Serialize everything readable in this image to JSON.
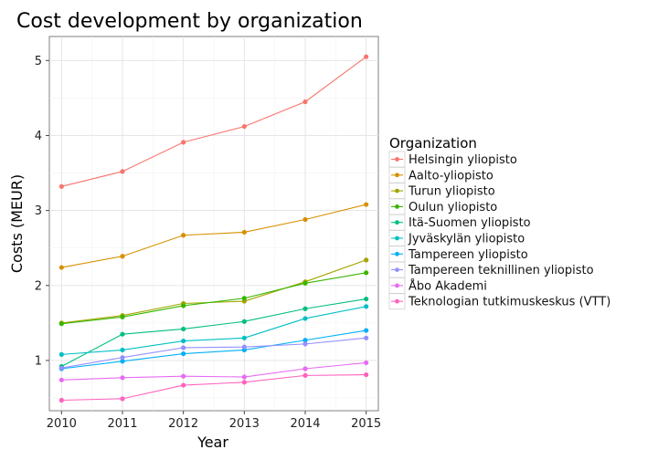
{
  "chart_data": {
    "type": "line",
    "title": "Cost development by organization",
    "xlabel": "Year",
    "ylabel": "Costs (MEUR)",
    "x": [
      2010,
      2011,
      2012,
      2013,
      2014,
      2015
    ],
    "xlim": [
      2009.8,
      2015.2
    ],
    "ylim": [
      0.33,
      5.32
    ],
    "yticks": [
      1,
      2,
      3,
      4,
      5
    ],
    "grid": true,
    "legend_title": "Organization",
    "legend_placement": "right",
    "series": [
      {
        "name": "Helsingin yliopisto",
        "color": "#f8766d",
        "values": [
          3.32,
          3.52,
          3.91,
          4.12,
          4.45,
          5.05
        ]
      },
      {
        "name": "Aalto-yliopisto",
        "color": "#d89000",
        "values": [
          2.24,
          2.39,
          2.67,
          2.71,
          2.88,
          3.08
        ]
      },
      {
        "name": "Turun yliopisto",
        "color": "#a3a500",
        "values": [
          1.5,
          1.6,
          1.76,
          1.79,
          2.05,
          2.34
        ]
      },
      {
        "name": "Oulun yliopisto",
        "color": "#39b600",
        "values": [
          1.49,
          1.58,
          1.73,
          1.83,
          2.03,
          2.17
        ]
      },
      {
        "name": "Itä-Suomen yliopisto",
        "color": "#00bf7d",
        "values": [
          0.92,
          1.35,
          1.42,
          1.52,
          1.69,
          1.82
        ]
      },
      {
        "name": "Jyväskylän yliopisto",
        "color": "#00bfc4",
        "values": [
          1.08,
          1.14,
          1.26,
          1.3,
          1.56,
          1.72
        ]
      },
      {
        "name": "Tampereen yliopisto",
        "color": "#00b0f6",
        "values": [
          0.89,
          0.99,
          1.09,
          1.14,
          1.27,
          1.4
        ]
      },
      {
        "name": "Tampereen teknillinen yliopisto",
        "color": "#9590ff",
        "values": [
          0.9,
          1.04,
          1.17,
          1.18,
          1.22,
          1.3
        ]
      },
      {
        "name": "Åbo Akademi",
        "color": "#e76bf3",
        "values": [
          0.74,
          0.77,
          0.79,
          0.78,
          0.89,
          0.97
        ]
      },
      {
        "name": "Teknologian tutkimuskeskus (VTT)",
        "color": "#ff62bc",
        "values": [
          0.47,
          0.49,
          0.67,
          0.71,
          0.8,
          0.81
        ]
      }
    ]
  }
}
